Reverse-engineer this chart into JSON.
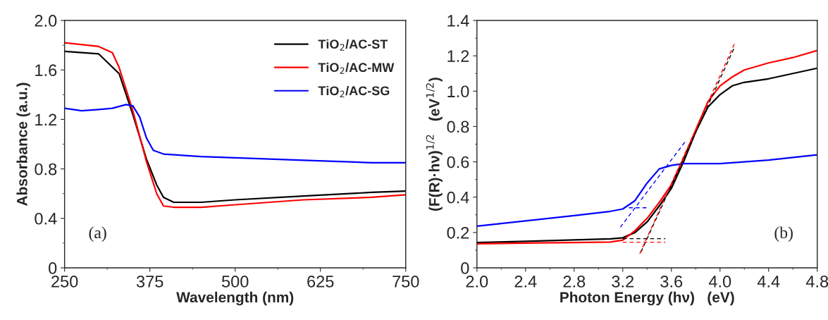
{
  "chart_data": [
    {
      "type": "line",
      "xlabel": "Wavelength (nm)",
      "ylabel": "Absorbance (a.u.)",
      "xlim": [
        250,
        750
      ],
      "xticks": [
        250,
        375,
        500,
        625,
        750
      ],
      "ylim": [
        0,
        2.0
      ],
      "yticks": [
        {
          "value": 0,
          "label": "0"
        },
        {
          "value": 0.4,
          "label": "0.4"
        },
        {
          "value": 0.8,
          "label": "0.8"
        },
        {
          "value": 1.2,
          "label": "1.2"
        },
        {
          "value": 1.6,
          "label": "1.6"
        },
        {
          "value": 2.0,
          "label": "2.0"
        }
      ],
      "grid": false,
      "legend": "top right",
      "annotations": [
        "(a)"
      ],
      "series": [
        {
          "name": "TiO$_{2}$/AC-ST",
          "color": "#000000",
          "x": [
            250,
            300,
            330,
            350,
            370,
            385,
            395,
            410,
            450,
            500,
            600,
            700,
            750
          ],
          "values": [
            1.75,
            1.73,
            1.57,
            1.24,
            0.88,
            0.67,
            0.57,
            0.53,
            0.53,
            0.55,
            0.58,
            0.61,
            0.62
          ]
        },
        {
          "name": "TiO$_{2}$/AC-MW",
          "color": "#ff0000",
          "x": [
            250,
            300,
            320,
            330,
            350,
            370,
            385,
            395,
            410,
            450,
            500,
            600,
            700,
            750
          ],
          "values": [
            1.82,
            1.79,
            1.74,
            1.62,
            1.27,
            0.86,
            0.6,
            0.5,
            0.49,
            0.49,
            0.51,
            0.55,
            0.57,
            0.59
          ]
        },
        {
          "name": "TiO$_{2}$/AC-SG",
          "color": "#0000ff",
          "x": [
            250,
            275,
            300,
            320,
            340,
            350,
            360,
            370,
            380,
            395,
            450,
            500,
            600,
            700,
            750
          ],
          "values": [
            1.29,
            1.27,
            1.28,
            1.29,
            1.32,
            1.31,
            1.22,
            1.05,
            0.95,
            0.92,
            0.9,
            0.89,
            0.87,
            0.85,
            0.85
          ]
        }
      ]
    },
    {
      "type": "line",
      "xlabel": "Photon Energy (hν)   (eV)",
      "ylabel": "(F(R)·hν)$^{1/2}$   (eV$^{1/2}$)",
      "xlim": [
        2.0,
        4.8
      ],
      "xticks": [
        {
          "value": 2.0,
          "label": "2.0"
        },
        2.4,
        2.8,
        3.2,
        3.6,
        {
          "value": 4.0,
          "label": "4.0"
        },
        4.4,
        4.8
      ],
      "ylim": [
        0,
        1.4
      ],
      "yticks": [
        {
          "value": 0,
          "label": "0"
        },
        0.2,
        0.4,
        0.6,
        0.8,
        {
          "value": 1.0,
          "label": "1.0"
        },
        1.2,
        1.4
      ],
      "grid": false,
      "annotations": [
        "(b)"
      ],
      "series": [
        {
          "color": "#000000",
          "x": [
            2.0,
            2.4,
            2.8,
            3.1,
            3.2,
            3.3,
            3.4,
            3.5,
            3.6,
            3.7,
            3.8,
            3.9,
            4.0,
            4.1,
            4.2,
            4.4,
            4.6,
            4.8
          ],
          "values": [
            0.143,
            0.15,
            0.158,
            0.164,
            0.17,
            0.2,
            0.26,
            0.35,
            0.45,
            0.6,
            0.77,
            0.91,
            0.98,
            1.03,
            1.05,
            1.07,
            1.1,
            1.13
          ]
        },
        {
          "color": "#ff0000",
          "x": [
            2.0,
            2.4,
            2.8,
            3.1,
            3.2,
            3.3,
            3.4,
            3.5,
            3.6,
            3.7,
            3.8,
            3.9,
            4.0,
            4.1,
            4.2,
            4.4,
            4.6,
            4.8
          ],
          "values": [
            0.136,
            0.14,
            0.143,
            0.146,
            0.157,
            0.21,
            0.28,
            0.37,
            0.47,
            0.62,
            0.78,
            0.94,
            1.03,
            1.08,
            1.12,
            1.16,
            1.19,
            1.23
          ]
        },
        {
          "color": "#0000ff",
          "x": [
            2.0,
            2.4,
            2.8,
            3.1,
            3.2,
            3.3,
            3.4,
            3.5,
            3.6,
            3.7,
            4.0,
            4.4,
            4.8
          ],
          "values": [
            0.236,
            0.266,
            0.296,
            0.32,
            0.333,
            0.38,
            0.48,
            0.56,
            0.58,
            0.59,
            0.59,
            0.61,
            0.64
          ]
        },
        {
          "color": "#000000",
          "line_style": "dashed",
          "x": [
            3.35,
            4.12
          ],
          "values": [
            0.09,
            1.25
          ]
        },
        {
          "color": "#ff0000",
          "line_style": "dashed",
          "x": [
            3.34,
            4.12
          ],
          "values": [
            0.08,
            1.27
          ]
        },
        {
          "color": "#000000",
          "line_style": "dashed",
          "x": [
            3.2,
            3.55
          ],
          "values": [
            0.165,
            0.165
          ]
        },
        {
          "color": "#ff0000",
          "line_style": "dashed",
          "x": [
            3.2,
            3.55
          ],
          "values": [
            0.145,
            0.145
          ]
        },
        {
          "color": "#0000ff",
          "line_style": "dashed",
          "x": [
            3.18,
            3.72
          ],
          "values": [
            0.23,
            0.72
          ]
        },
        {
          "color": "#0000ff",
          "line_style": "dashed",
          "x": [
            3.25,
            3.4
          ],
          "values": [
            0.34,
            0.34
          ]
        }
      ]
    }
  ]
}
